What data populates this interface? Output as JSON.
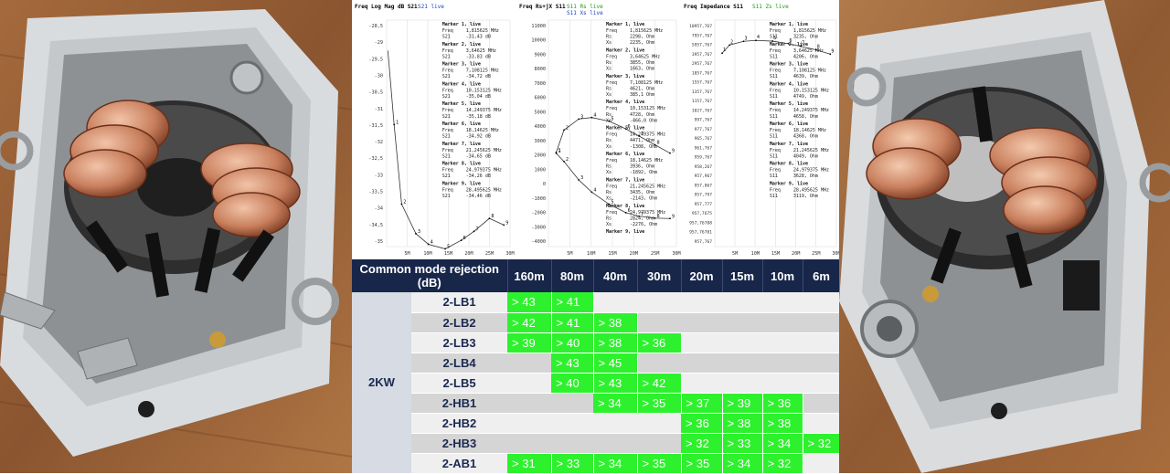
{
  "graphs": [
    {
      "title": "Freq Log Mag dB S21",
      "trace_label": "S21 live",
      "trace_label_2": "",
      "y_ticks": [
        "-28,5",
        "-29",
        "-29,5",
        "-30",
        "-30,5",
        "-31",
        "-31,5",
        "-32",
        "-32,5",
        "-33",
        "-33,5",
        "-34",
        "-34,5",
        "-35"
      ],
      "x_ticks": [
        "5M",
        "10M",
        "15M",
        "20M",
        "25M",
        "30M"
      ],
      "markers": [
        {
          "name": "Marker 1, live",
          "rows": [
            [
              "Freq",
              "1,815625 MHz"
            ],
            [
              "S21",
              "-31,43 dB"
            ]
          ]
        },
        {
          "name": "Marker 2, live",
          "rows": [
            [
              "Freq",
              "3,64625 MHz"
            ],
            [
              "S21",
              "-33,83 dB"
            ]
          ]
        },
        {
          "name": "Marker 3, live",
          "rows": [
            [
              "Freq",
              "7,108125 MHz"
            ],
            [
              "S21",
              "-34,72 dB"
            ]
          ]
        },
        {
          "name": "Marker 4, live",
          "rows": [
            [
              "Freq",
              "10,153125 MHz"
            ],
            [
              "S21",
              "-35,04 dB"
            ]
          ]
        },
        {
          "name": "Marker 5, live",
          "rows": [
            [
              "Freq",
              "14,249375 MHz"
            ],
            [
              "S21",
              "-35,18 dB"
            ]
          ]
        },
        {
          "name": "Marker 6, live",
          "rows": [
            [
              "Freq",
              "18,14625 MHz"
            ],
            [
              "S21",
              "-34,92 dB"
            ]
          ]
        },
        {
          "name": "Marker 7, live",
          "rows": [
            [
              "Freq",
              "21,245625 MHz"
            ],
            [
              "S21",
              "-34,65 dB"
            ]
          ]
        },
        {
          "name": "Marker 8, live",
          "rows": [
            [
              "Freq",
              "24,979375 MHz"
            ],
            [
              "S21",
              "-34,26 dB"
            ]
          ]
        },
        {
          "name": "Marker 9, live",
          "rows": [
            [
              "Freq",
              "28,495625 MHz"
            ],
            [
              "S21",
              "-34,46 dB"
            ]
          ]
        }
      ]
    },
    {
      "title": "Freq Rs+jX S11",
      "trace_label": "S11 Rs live",
      "trace_label_2": "S11 Xs live",
      "y_ticks": [
        "11000",
        "10000",
        "9000",
        "8000",
        "7000",
        "6000",
        "5000",
        "4000",
        "3000",
        "2000",
        "1000",
        "0",
        "-1000",
        "-2000",
        "-3000",
        "-4000"
      ],
      "x_ticks": [
        "5M",
        "10M",
        "15M",
        "20M",
        "25M",
        "30M"
      ],
      "markers": [
        {
          "name": "Marker 1, live",
          "rows": [
            [
              "Freq",
              "1,815625 MHz"
            ],
            [
              "Rs",
              "2298, Ohm"
            ],
            [
              "Xs",
              "2235, Ohm"
            ]
          ]
        },
        {
          "name": "Marker 2, live",
          "rows": [
            [
              "Freq",
              "3,64625 MHz"
            ],
            [
              "Rs",
              "3855, Ohm"
            ],
            [
              "Xs",
              "1663, Ohm"
            ]
          ]
        },
        {
          "name": "Marker 3, live",
          "rows": [
            [
              "Freq",
              "7,108125 MHz"
            ],
            [
              "Rs",
              "4621, Ohm"
            ],
            [
              "Xs",
              "385,1 Ohm"
            ]
          ]
        },
        {
          "name": "Marker 4, live",
          "rows": [
            [
              "Freq",
              "10,153125 MHz"
            ],
            [
              "Rs",
              "4728, Ohm"
            ],
            [
              "Xs",
              "-466,0 Ohm"
            ]
          ]
        },
        {
          "name": "Marker 5, live",
          "rows": [
            [
              "Freq",
              "14,249375 MHz"
            ],
            [
              "Rs",
              "4471, Ohm"
            ],
            [
              "Xs",
              "-1308, Ohm"
            ]
          ]
        },
        {
          "name": "Marker 6, live",
          "rows": [
            [
              "Freq",
              "18,14625 MHz"
            ],
            [
              "Rs",
              "3936, Ohm"
            ],
            [
              "Xs",
              "-1892, Ohm"
            ]
          ]
        },
        {
          "name": "Marker 7, live",
          "rows": [
            [
              "Freq",
              "21,245625 MHz"
            ],
            [
              "Rs",
              "3435, Ohm"
            ],
            [
              "Xs",
              "-2143, Ohm"
            ]
          ]
        },
        {
          "name": "Marker 8, live",
          "rows": [
            [
              "Freq",
              "24,979375 MHz"
            ],
            [
              "Rs",
              "2824, Ohm"
            ],
            [
              "Xs",
              "-2276, Ohm"
            ]
          ]
        },
        {
          "name": "Marker 9, live",
          "rows": []
        }
      ]
    },
    {
      "title": "Freq Impedance S11",
      "trace_label": "S11 Zs live",
      "trace_label_2": "",
      "y_ticks": [
        "10957,767",
        "7957,767",
        "5957,767",
        "3957,767",
        "2957,767",
        "1857,767",
        "1557,767",
        "1357,767",
        "1157,767",
        "1027,767",
        "997,767",
        "977,767",
        "965,767",
        "961,767",
        "959,767",
        "958,267",
        "957,967",
        "957,867",
        "957,797",
        "957,777",
        "957,7675",
        "957,76708",
        "957,76701",
        "957,767"
      ],
      "x_ticks": [
        "5M",
        "10M",
        "15M",
        "20M",
        "25M",
        "30M"
      ],
      "markers": [
        {
          "name": "Marker 1, live",
          "rows": [
            [
              "Freq",
              "1,815625 MHz"
            ],
            [
              "S11",
              "3235, Ohm"
            ]
          ]
        },
        {
          "name": "Marker 2, live",
          "rows": [
            [
              "Freq",
              "3,64625 MHz"
            ],
            [
              "S11",
              "4206, Ohm"
            ]
          ]
        },
        {
          "name": "Marker 3, live",
          "rows": [
            [
              "Freq",
              "7,108125 MHz"
            ],
            [
              "S11",
              "4639, Ohm"
            ]
          ]
        },
        {
          "name": "Marker 4, live",
          "rows": [
            [
              "Freq",
              "10,153125 MHz"
            ],
            [
              "S11",
              "4749, Ohm"
            ]
          ]
        },
        {
          "name": "Marker 5, live",
          "rows": [
            [
              "Freq",
              "14,249375 MHz"
            ],
            [
              "S11",
              "4658, Ohm"
            ]
          ]
        },
        {
          "name": "Marker 6, live",
          "rows": [
            [
              "Freq",
              "18,14625 MHz"
            ],
            [
              "S11",
              "4368, Ohm"
            ]
          ]
        },
        {
          "name": "Marker 7, live",
          "rows": [
            [
              "Freq",
              "21,245625 MHz"
            ],
            [
              "S11",
              "4049, Ohm"
            ]
          ]
        },
        {
          "name": "Marker 8, live",
          "rows": [
            [
              "Freq",
              "24,979375 MHz"
            ],
            [
              "S11",
              "3628, Ohm"
            ]
          ]
        },
        {
          "name": "Marker 9, live",
          "rows": [
            [
              "Freq",
              "28,495625 MHz"
            ],
            [
              "S11",
              "3119, Ohm"
            ]
          ]
        }
      ]
    }
  ],
  "table": {
    "title": "Common mode rejection (dB)",
    "bands": [
      "160m",
      "80m",
      "40m",
      "30m",
      "20m",
      "15m",
      "10m",
      "6m"
    ],
    "group_label": "2KW",
    "rows": [
      {
        "model": "2-LB1",
        "values": [
          "> 43",
          "> 41",
          "",
          "",
          "",
          "",
          "",
          ""
        ]
      },
      {
        "model": "2-LB2",
        "values": [
          "> 42",
          "> 41",
          "> 38",
          "",
          "",
          "",
          "",
          ""
        ]
      },
      {
        "model": "2-LB3",
        "values": [
          "> 39",
          "> 40",
          "> 38",
          "> 36",
          "",
          "",
          "",
          ""
        ]
      },
      {
        "model": "2-LB4",
        "values": [
          "",
          "> 43",
          "> 45",
          "",
          "",
          "",
          "",
          ""
        ]
      },
      {
        "model": "2-LB5",
        "values": [
          "",
          "> 40",
          "> 43",
          "> 42",
          "",
          "",
          "",
          ""
        ]
      },
      {
        "model": "2-HB1",
        "values": [
          "",
          "",
          "> 34",
          "> 35",
          "> 37",
          "> 39",
          "> 36",
          ""
        ]
      },
      {
        "model": "2-HB2",
        "values": [
          "",
          "",
          "",
          "",
          "> 36",
          "> 38",
          "> 38",
          ""
        ]
      },
      {
        "model": "2-HB3",
        "values": [
          "",
          "",
          "",
          "",
          "> 32",
          "> 33",
          "> 34",
          "> 32"
        ]
      },
      {
        "model": "2-AB1",
        "values": [
          "> 31",
          "> 33",
          "> 34",
          "> 35",
          "> 35",
          "> 34",
          "> 32",
          ""
        ]
      }
    ]
  },
  "colors": {
    "header_bg": "#18264a",
    "value_bg": "#2ef12e",
    "trace_s21": "#ffffff"
  }
}
